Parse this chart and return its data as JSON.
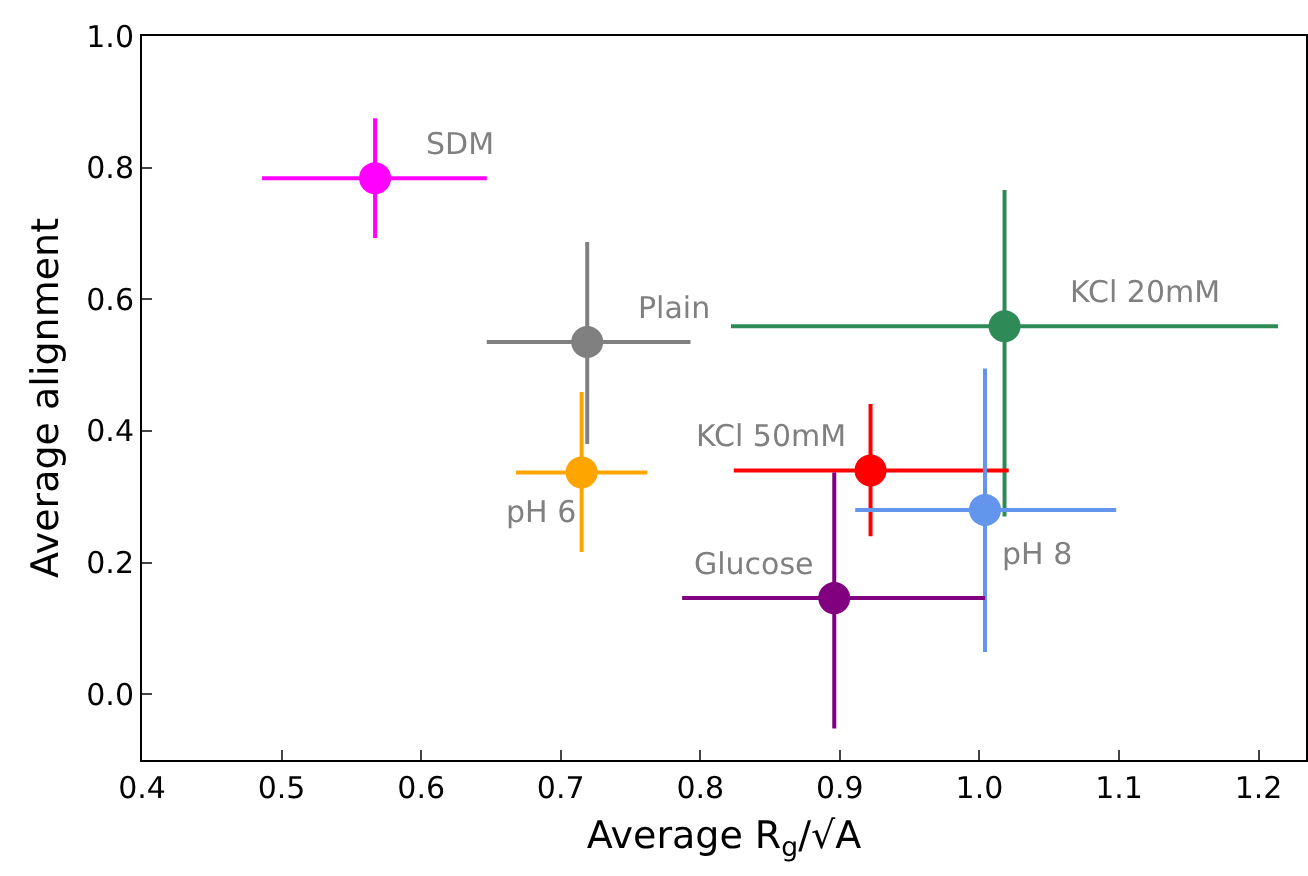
{
  "chart_data": {
    "type": "scatter",
    "xlabel": "Average R$_{g}$/√A",
    "ylabel": "Average alignment",
    "marker": "circle",
    "grid": false,
    "xlim": [
      0.4,
      1.234
    ],
    "ylim": [
      -0.1,
      1.0
    ],
    "xticks": [
      0.4,
      0.5,
      0.6,
      0.7,
      0.8,
      0.9,
      {
        "value": 1.0,
        "label": "1.0"
      },
      1.1,
      1.2
    ],
    "yticks": [
      {
        "value": 0.0,
        "label": "0.0"
      },
      0.2,
      0.4,
      0.6,
      0.8,
      {
        "value": 1.0,
        "label": "1.0"
      }
    ],
    "series": [
      {
        "color": "#ff00ff",
        "x": [
          0.567
        ],
        "values": [
          0.784
        ],
        "xerrors": [
          [
            0.486,
            0.647
          ]
        ],
        "errors": [
          [
            0.693,
            0.875
          ]
        ]
      },
      {
        "color": "#808080",
        "x": [
          0.719
        ],
        "values": [
          0.535
        ],
        "xerrors": [
          [
            0.647,
            0.793
          ]
        ],
        "errors": [
          [
            0.38,
            0.687
          ]
        ]
      },
      {
        "color": "#ffa500",
        "x": [
          0.715
        ],
        "values": [
          0.337
        ],
        "xerrors": [
          [
            0.668,
            0.762
          ]
        ],
        "errors": [
          [
            0.216,
            0.459
          ]
        ]
      },
      {
        "color": "#2e8b57",
        "x": [
          1.018
        ],
        "values": [
          0.559
        ],
        "xerrors": [
          [
            0.822,
            1.214
          ]
        ],
        "errors": [
          [
            0.27,
            0.766
          ]
        ]
      },
      {
        "color": "#ff0000",
        "x": [
          0.922
        ],
        "values": [
          0.34
        ],
        "xerrors": [
          [
            0.824,
            1.021
          ]
        ],
        "errors": [
          [
            0.24,
            0.441
          ]
        ]
      },
      {
        "color": "#6495ed",
        "x": [
          1.004
        ],
        "values": [
          0.28
        ],
        "xerrors": [
          [
            0.911,
            1.098
          ]
        ],
        "errors": [
          [
            0.064,
            0.495
          ]
        ]
      },
      {
        "color": "#800080",
        "x": [
          0.896
        ],
        "values": [
          0.146
        ],
        "xerrors": [
          [
            0.787,
            1.004
          ]
        ],
        "errors": [
          [
            -0.052,
            0.337
          ]
        ]
      }
    ],
    "annotations": [
      "SDM",
      "Plain",
      "pH 6",
      "KCl 20mM",
      "KCl 50mM",
      "pH 8",
      "Glucose"
    ]
  }
}
